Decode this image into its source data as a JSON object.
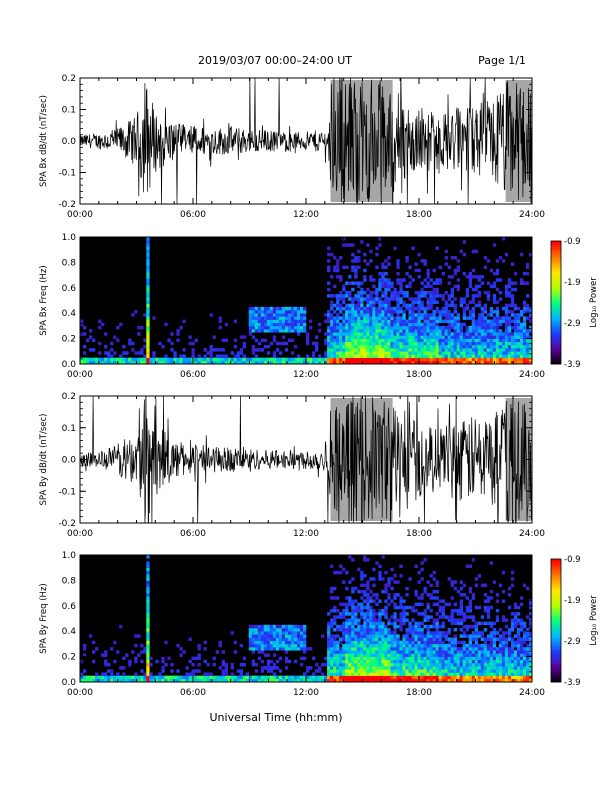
{
  "header": {
    "title": "2019/03/07  00:00–24:00 UT",
    "page": "Page 1/1"
  },
  "footer": {
    "xlabel": "Universal Time (hh:mm)"
  },
  "colorbar": {
    "label": "Log₁₀ Power",
    "ticks": [
      "-0.9",
      "-1.9",
      "-2.9",
      "-3.9"
    ],
    "range": [
      -3.9,
      -0.9
    ],
    "colors": [
      "#000000",
      "#5a0096",
      "#1e3cff",
      "#00b4ff",
      "#00ff80",
      "#b4ff00",
      "#ffe600",
      "#ff7800",
      "#ff0000"
    ]
  },
  "chart_data": [
    {
      "type": "line",
      "ylabel": "SPA Bx dB/dt (nT/sec)",
      "xlim": [
        0,
        24
      ],
      "ylim": [
        -0.2,
        0.2
      ],
      "x_ticks": [
        "00:00",
        "06:00",
        "12:00",
        "18:00",
        "24:00"
      ],
      "y_ticks": [
        "0.2",
        "0.1",
        "0.0",
        "-0.1",
        "-0.2"
      ],
      "series": [
        {
          "x_hours": [
            0,
            1,
            2,
            3,
            3.5,
            4,
            5,
            6,
            7,
            8,
            9,
            10,
            11,
            12,
            13.2,
            13.3,
            14,
            15,
            16,
            17,
            18,
            19,
            20,
            21,
            22,
            22.6,
            23,
            24
          ],
          "amplitude": [
            0.02,
            0.025,
            0.04,
            0.08,
            0.2,
            0.1,
            0.06,
            0.05,
            0.045,
            0.045,
            0.04,
            0.035,
            0.03,
            0.03,
            0.04,
            0.2,
            0.2,
            0.2,
            0.2,
            0.15,
            0.1,
            0.09,
            0.1,
            0.12,
            0.15,
            0.2,
            0.2,
            0.2
          ]
        }
      ]
    },
    {
      "type": "heatmap",
      "ylabel": "SPA Bx Freq (Hz)",
      "xlim": [
        0,
        24
      ],
      "ylim": [
        0,
        1
      ],
      "x_ticks": [
        "00:00",
        "06:00",
        "12:00",
        "18:00",
        "24:00"
      ],
      "y_ticks": [
        "1.0",
        "0.8",
        "0.6",
        "0.4",
        "0.2",
        "0.0"
      ],
      "zlim": [
        -3.9,
        -0.9
      ]
    },
    {
      "type": "line",
      "ylabel": "SPA By dB/dt (nT/sec)",
      "xlim": [
        0,
        24
      ],
      "ylim": [
        -0.2,
        0.2
      ],
      "x_ticks": [
        "00:00",
        "06:00",
        "12:00",
        "18:00",
        "24:00"
      ],
      "y_ticks": [
        "0.2",
        "0.1",
        "0.0",
        "-0.1",
        "-0.2"
      ],
      "series": [
        {
          "x_hours": [
            0,
            1,
            2,
            3,
            3.5,
            4,
            5,
            6,
            7,
            8,
            9,
            10,
            11,
            12,
            13.2,
            13.3,
            14,
            15,
            16,
            17,
            18,
            19,
            20,
            21,
            22,
            22.6,
            23,
            24
          ],
          "amplitude": [
            0.02,
            0.025,
            0.05,
            0.09,
            0.2,
            0.12,
            0.06,
            0.05,
            0.045,
            0.04,
            0.035,
            0.03,
            0.03,
            0.03,
            0.04,
            0.2,
            0.2,
            0.2,
            0.2,
            0.18,
            0.12,
            0.1,
            0.12,
            0.14,
            0.16,
            0.2,
            0.2,
            0.2
          ]
        }
      ]
    },
    {
      "type": "heatmap",
      "ylabel": "SPA By Freq (Hz)",
      "xlim": [
        0,
        24
      ],
      "ylim": [
        0,
        1
      ],
      "x_ticks": [
        "00:00",
        "06:00",
        "12:00",
        "18:00",
        "24:00"
      ],
      "y_ticks": [
        "1.0",
        "0.8",
        "0.6",
        "0.4",
        "0.2",
        "0.0"
      ],
      "zlim": [
        -3.9,
        -0.9
      ]
    }
  ]
}
